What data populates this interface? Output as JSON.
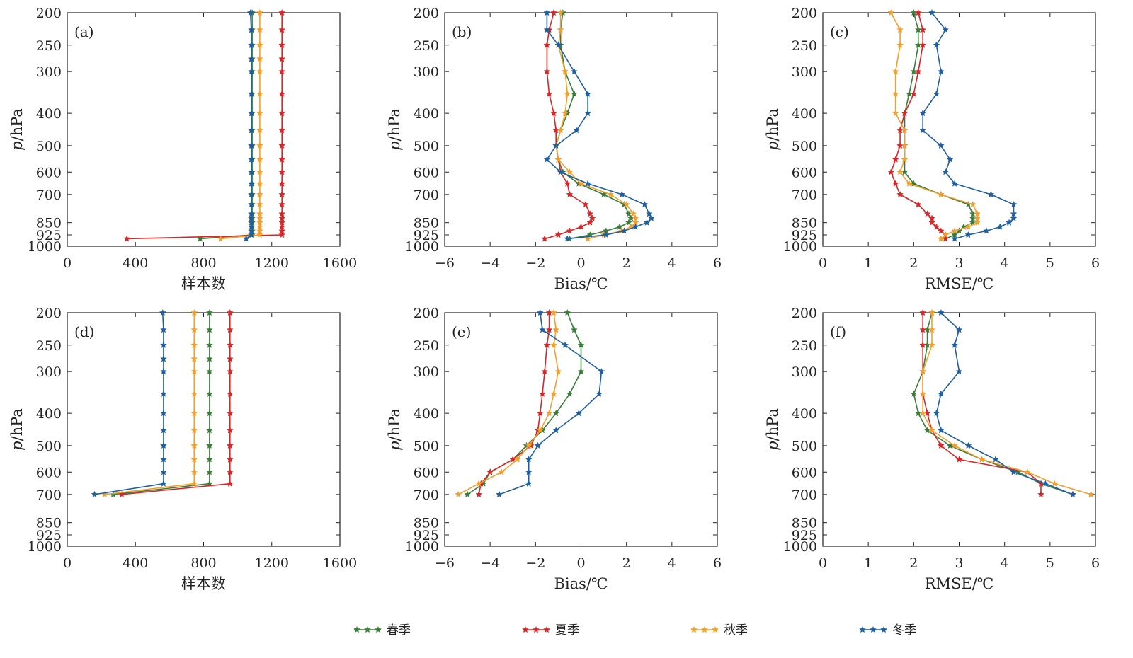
{
  "legend": [
    {
      "name": "春季",
      "color": "#3a7d3a"
    },
    {
      "name": "夏季",
      "color": "#d62728"
    },
    {
      "name": "秋季",
      "color": "#f0a030"
    },
    {
      "name": "冬季",
      "color": "#1f5fa0"
    }
  ],
  "chart_data": [
    {
      "type": "line",
      "panel": "(a)",
      "xlabel": "样本数",
      "ylabel": "p/hPa",
      "xlim": [
        0,
        1600
      ],
      "xticks": [
        0,
        400,
        800,
        1200,
        1600
      ],
      "ylim": [
        1000,
        200
      ],
      "yscale": "log",
      "yticks": [
        200,
        250,
        300,
        400,
        500,
        600,
        700,
        850,
        925,
        1000
      ],
      "zero_line": false,
      "series": [
        {
          "name": "春季",
          "y": [
            200,
            225,
            250,
            275,
            300,
            350,
            400,
            450,
            500,
            550,
            600,
            650,
            700,
            750,
            800,
            825,
            850,
            875,
            900,
            925,
            950
          ],
          "x": [
            1085,
            1085,
            1085,
            1085,
            1085,
            1085,
            1085,
            1085,
            1085,
            1085,
            1085,
            1085,
            1085,
            1085,
            1085,
            1085,
            1085,
            1085,
            1085,
            1085,
            780
          ]
        },
        {
          "name": "夏季",
          "y": [
            200,
            225,
            250,
            275,
            300,
            350,
            400,
            450,
            500,
            550,
            600,
            650,
            700,
            750,
            800,
            825,
            850,
            875,
            900,
            925,
            950
          ],
          "x": [
            1260,
            1260,
            1260,
            1260,
            1260,
            1260,
            1260,
            1260,
            1260,
            1260,
            1260,
            1260,
            1260,
            1260,
            1260,
            1260,
            1260,
            1260,
            1260,
            1260,
            350
          ]
        },
        {
          "name": "秋季",
          "y": [
            200,
            225,
            250,
            275,
            300,
            350,
            400,
            450,
            500,
            550,
            600,
            650,
            700,
            750,
            800,
            825,
            850,
            875,
            900,
            925,
            950
          ],
          "x": [
            1130,
            1130,
            1130,
            1130,
            1130,
            1130,
            1130,
            1130,
            1130,
            1130,
            1130,
            1130,
            1130,
            1130,
            1130,
            1130,
            1130,
            1130,
            1130,
            1130,
            900
          ]
        },
        {
          "name": "冬季",
          "y": [
            200,
            225,
            250,
            275,
            300,
            350,
            400,
            450,
            500,
            550,
            600,
            650,
            700,
            750,
            800,
            825,
            850,
            875,
            900,
            925,
            950
          ],
          "x": [
            1075,
            1080,
            1080,
            1080,
            1080,
            1080,
            1080,
            1080,
            1080,
            1080,
            1080,
            1080,
            1080,
            1080,
            1080,
            1080,
            1080,
            1080,
            1080,
            1080,
            1050
          ]
        }
      ]
    },
    {
      "type": "line",
      "panel": "(b)",
      "xlabel": "Bias/℃",
      "ylabel": "p/hPa",
      "xlim": [
        -6,
        6
      ],
      "xticks": [
        -6,
        -4,
        -2,
        0,
        2,
        4,
        6
      ],
      "ylim": [
        1000,
        200
      ],
      "yscale": "log",
      "yticks": [
        200,
        250,
        300,
        400,
        500,
        600,
        700,
        850,
        925,
        1000
      ],
      "zero_line": true,
      "series": [
        {
          "name": "春季",
          "y": [
            200,
            225,
            250,
            300,
            350,
            400,
            450,
            500,
            550,
            600,
            650,
            700,
            750,
            800,
            825,
            850,
            875,
            900,
            925,
            950
          ],
          "x": [
            -0.8,
            -0.9,
            -0.9,
            -0.7,
            -0.3,
            -0.6,
            -0.9,
            -1.1,
            -1.0,
            -0.8,
            -0.1,
            1.0,
            1.9,
            2.1,
            2.2,
            2.1,
            1.7,
            1.1,
            0.4,
            -0.5
          ]
        },
        {
          "name": "夏季",
          "y": [
            200,
            225,
            250,
            300,
            350,
            400,
            450,
            500,
            550,
            600,
            650,
            700,
            750,
            800,
            825,
            850,
            875,
            900,
            925,
            950
          ],
          "x": [
            -1.2,
            -1.4,
            -1.5,
            -1.5,
            -1.4,
            -1.2,
            -1.1,
            -1.1,
            -1.0,
            -0.9,
            -0.6,
            -0.5,
            0.2,
            0.4,
            0.5,
            0.4,
            0.0,
            -0.5,
            -1.0,
            -1.6
          ]
        },
        {
          "name": "秋季",
          "y": [
            200,
            225,
            250,
            300,
            350,
            400,
            450,
            500,
            550,
            600,
            650,
            700,
            750,
            800,
            825,
            850,
            875,
            900,
            925,
            950
          ],
          "x": [
            -0.9,
            -0.9,
            -1.0,
            -0.7,
            -0.6,
            -0.7,
            -0.9,
            -1.1,
            -1.0,
            -0.5,
            0.0,
            1.3,
            2.0,
            2.3,
            2.4,
            2.4,
            2.2,
            1.8,
            1.0,
            0.3
          ]
        },
        {
          "name": "冬季",
          "y": [
            200,
            225,
            250,
            300,
            350,
            400,
            450,
            500,
            550,
            600,
            650,
            700,
            750,
            800,
            825,
            850,
            875,
            900,
            925,
            950
          ],
          "x": [
            -1.5,
            -1.5,
            -1.0,
            -0.3,
            0.3,
            0.3,
            -0.2,
            -1.1,
            -1.5,
            -0.9,
            0.3,
            1.8,
            2.8,
            3.0,
            3.1,
            2.9,
            2.4,
            1.9,
            1.1,
            -0.6
          ]
        }
      ]
    },
    {
      "type": "line",
      "panel": "(c)",
      "xlabel": "RMSE/℃",
      "ylabel": "p/hPa",
      "xlim": [
        0,
        6
      ],
      "xticks": [
        0,
        1,
        2,
        3,
        4,
        5,
        6
      ],
      "ylim": [
        1000,
        200
      ],
      "yscale": "log",
      "yticks": [
        200,
        250,
        300,
        400,
        500,
        600,
        700,
        850,
        925,
        1000
      ],
      "zero_line": false,
      "series": [
        {
          "name": "春季",
          "y": [
            200,
            225,
            250,
            300,
            350,
            400,
            450,
            500,
            550,
            600,
            650,
            700,
            750,
            800,
            825,
            850,
            875,
            900,
            925,
            950
          ],
          "x": [
            2.0,
            2.1,
            2.1,
            2.0,
            1.9,
            1.8,
            1.8,
            1.8,
            1.8,
            1.8,
            2.0,
            2.6,
            3.2,
            3.3,
            3.3,
            3.3,
            3.1,
            3.0,
            2.9,
            2.7
          ]
        },
        {
          "name": "夏季",
          "y": [
            200,
            225,
            250,
            300,
            350,
            400,
            450,
            500,
            550,
            600,
            650,
            700,
            750,
            800,
            825,
            850,
            875,
            900,
            925,
            950
          ],
          "x": [
            2.1,
            2.2,
            2.2,
            2.1,
            2.0,
            1.8,
            1.7,
            1.7,
            1.6,
            1.5,
            1.6,
            1.7,
            2.1,
            2.3,
            2.4,
            2.4,
            2.5,
            2.6,
            2.7,
            2.7
          ]
        },
        {
          "name": "秋季",
          "y": [
            200,
            225,
            250,
            300,
            350,
            400,
            450,
            500,
            550,
            600,
            650,
            700,
            750,
            800,
            825,
            850,
            875,
            900,
            925,
            950
          ],
          "x": [
            1.5,
            1.7,
            1.7,
            1.6,
            1.6,
            1.6,
            1.8,
            1.8,
            1.8,
            1.7,
            1.9,
            2.6,
            3.3,
            3.4,
            3.4,
            3.4,
            3.2,
            2.9,
            2.7,
            2.6
          ]
        },
        {
          "name": "冬季",
          "y": [
            200,
            225,
            250,
            300,
            350,
            400,
            450,
            500,
            550,
            600,
            650,
            700,
            750,
            800,
            825,
            850,
            875,
            900,
            925,
            950
          ],
          "x": [
            2.4,
            2.7,
            2.5,
            2.6,
            2.5,
            2.2,
            2.2,
            2.6,
            2.8,
            2.7,
            2.9,
            3.7,
            4.2,
            4.2,
            4.2,
            4.1,
            3.9,
            3.6,
            3.2,
            2.9
          ]
        }
      ]
    },
    {
      "type": "line",
      "panel": "(d)",
      "xlabel": "样本数",
      "ylabel": "p/hPa",
      "xlim": [
        0,
        1600
      ],
      "xticks": [
        0,
        400,
        800,
        1200,
        1600
      ],
      "ylim": [
        1000,
        200
      ],
      "yscale": "log",
      "yticks": [
        200,
        250,
        300,
        400,
        500,
        600,
        700,
        850,
        925,
        1000
      ],
      "zero_line": false,
      "series": [
        {
          "name": "春季",
          "y": [
            200,
            225,
            250,
            275,
            300,
            350,
            400,
            450,
            500,
            550,
            600,
            650,
            700
          ],
          "x": [
            835,
            835,
            835,
            835,
            835,
            835,
            835,
            835,
            835,
            835,
            835,
            835,
            270
          ]
        },
        {
          "name": "夏季",
          "y": [
            200,
            225,
            250,
            275,
            300,
            350,
            400,
            450,
            500,
            550,
            600,
            650,
            700
          ],
          "x": [
            955,
            955,
            955,
            955,
            955,
            955,
            955,
            955,
            955,
            955,
            955,
            955,
            320
          ]
        },
        {
          "name": "秋季",
          "y": [
            200,
            225,
            250,
            275,
            300,
            350,
            400,
            450,
            500,
            550,
            600,
            650,
            700
          ],
          "x": [
            745,
            745,
            745,
            745,
            745,
            745,
            745,
            745,
            745,
            745,
            745,
            745,
            220
          ]
        },
        {
          "name": "冬季",
          "y": [
            200,
            225,
            250,
            275,
            300,
            350,
            400,
            450,
            500,
            550,
            600,
            650,
            700
          ],
          "x": [
            560,
            565,
            565,
            565,
            565,
            565,
            565,
            565,
            565,
            565,
            565,
            565,
            160
          ]
        }
      ]
    },
    {
      "type": "line",
      "panel": "(e)",
      "xlabel": "Bias/℃",
      "ylabel": "p/hPa",
      "xlim": [
        -6,
        6
      ],
      "xticks": [
        -6,
        -4,
        -2,
        0,
        2,
        4,
        6
      ],
      "ylim": [
        1000,
        200
      ],
      "yscale": "log",
      "yticks": [
        200,
        250,
        300,
        400,
        500,
        600,
        700,
        850,
        925,
        1000
      ],
      "zero_line": true,
      "series": [
        {
          "name": "春季",
          "y": [
            200,
            225,
            250,
            300,
            350,
            400,
            450,
            500,
            550,
            600,
            650,
            700
          ],
          "x": [
            -0.6,
            -0.3,
            0.0,
            0.0,
            -0.5,
            -1.1,
            -1.7,
            -2.4,
            -3.0,
            -4.0,
            -4.3,
            -5.0
          ]
        },
        {
          "name": "夏季",
          "y": [
            200,
            225,
            250,
            300,
            350,
            400,
            450,
            500,
            550,
            600,
            650,
            700
          ],
          "x": [
            -1.4,
            -1.4,
            -1.5,
            -1.6,
            -1.7,
            -1.8,
            -1.9,
            -2.2,
            -3.0,
            -4.0,
            -4.4,
            -4.5
          ]
        },
        {
          "name": "秋季",
          "y": [
            200,
            225,
            250,
            300,
            350,
            400,
            450,
            500,
            550,
            600,
            650,
            700
          ],
          "x": [
            -1.2,
            -1.1,
            -1.2,
            -1.0,
            -1.2,
            -1.4,
            -1.8,
            -2.3,
            -2.8,
            -3.5,
            -4.5,
            -5.4
          ]
        },
        {
          "name": "冬季",
          "y": [
            200,
            225,
            250,
            300,
            350,
            400,
            450,
            500,
            550,
            600,
            650,
            700
          ],
          "x": [
            -1.8,
            -1.7,
            -0.7,
            0.9,
            0.8,
            -0.1,
            -1.1,
            -1.9,
            -2.3,
            -2.3,
            -2.3,
            -3.6
          ]
        }
      ]
    },
    {
      "type": "line",
      "panel": "(f)",
      "xlabel": "RMSE/℃",
      "ylabel": "p/hPa",
      "xlim": [
        0,
        6
      ],
      "xticks": [
        0,
        1,
        2,
        3,
        4,
        5,
        6
      ],
      "ylim": [
        1000,
        200
      ],
      "yscale": "log",
      "yticks": [
        200,
        250,
        300,
        400,
        500,
        600,
        700,
        850,
        925,
        1000
      ],
      "zero_line": false,
      "series": [
        {
          "name": "春季",
          "y": [
            200,
            225,
            250,
            300,
            350,
            400,
            450,
            500,
            550,
            600,
            650,
            700
          ],
          "x": [
            2.4,
            2.3,
            2.3,
            2.2,
            2.0,
            2.1,
            2.3,
            2.8,
            3.5,
            4.3,
            4.8,
            5.5
          ]
        },
        {
          "name": "夏季",
          "y": [
            200,
            225,
            250,
            300,
            350,
            400,
            450,
            500,
            550,
            600,
            650,
            700
          ],
          "x": [
            2.2,
            2.2,
            2.2,
            2.2,
            2.2,
            2.3,
            2.4,
            2.6,
            3.0,
            4.5,
            4.8,
            4.8
          ]
        },
        {
          "name": "秋季",
          "y": [
            200,
            225,
            250,
            300,
            350,
            400,
            450,
            500,
            550,
            600,
            650,
            700
          ],
          "x": [
            2.4,
            2.4,
            2.4,
            2.2,
            2.2,
            2.2,
            2.4,
            2.9,
            3.5,
            4.5,
            5.1,
            5.9
          ]
        },
        {
          "name": "冬季",
          "y": [
            200,
            225,
            250,
            300,
            350,
            400,
            450,
            500,
            550,
            600,
            650,
            700
          ],
          "x": [
            2.6,
            3.0,
            2.9,
            3.0,
            2.6,
            2.5,
            2.6,
            3.2,
            3.8,
            4.2,
            4.9,
            5.5
          ]
        }
      ]
    }
  ]
}
